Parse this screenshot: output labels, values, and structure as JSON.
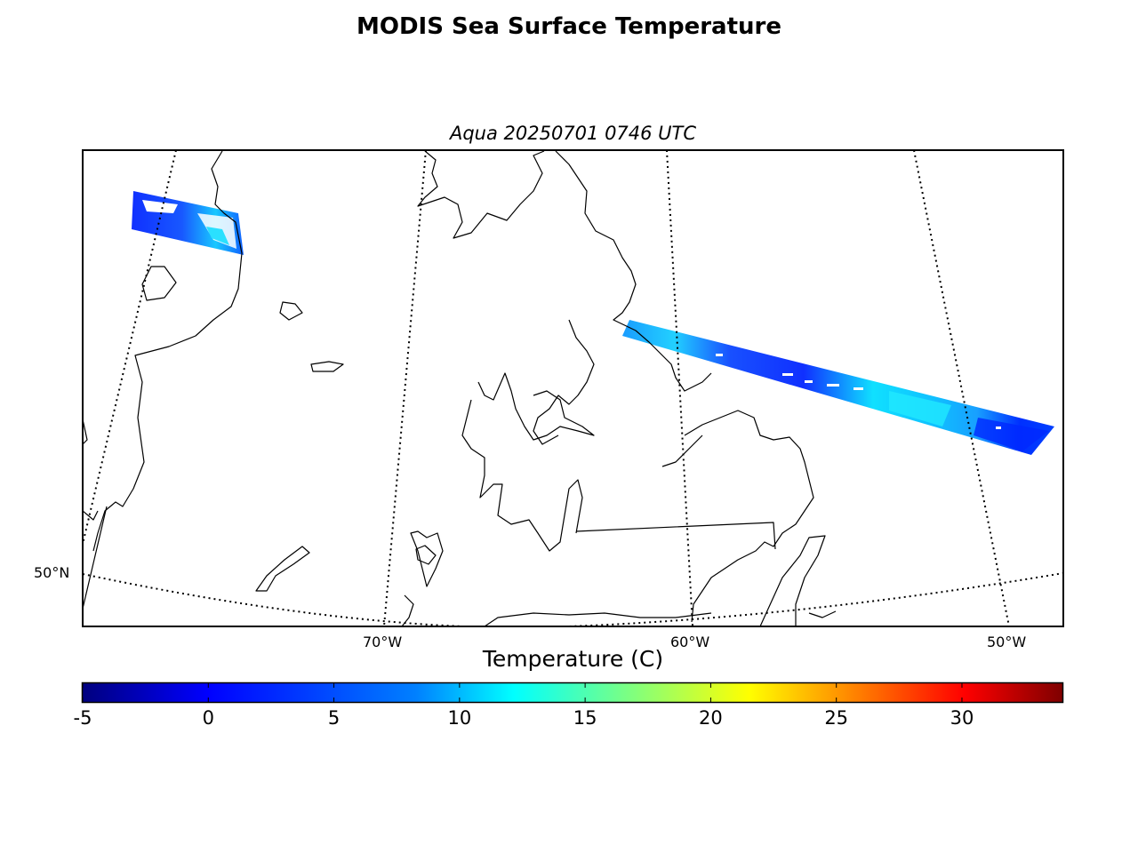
{
  "title": "MODIS Sea Surface Temperature",
  "subtitle": "Aqua 20250701 0746 UTC",
  "graticule": {
    "lat_labels": [
      {
        "text": "50°N",
        "lat": 50
      }
    ],
    "lon_labels": [
      {
        "text": "70°W",
        "lon": -70
      },
      {
        "text": "60°W",
        "lon": -60
      },
      {
        "text": "50°W",
        "lon": -50
      }
    ]
  },
  "colorbar": {
    "label": "Temperature (C)",
    "colormap": "jet",
    "range": [
      -5,
      34
    ],
    "ticks": [
      -5,
      0,
      5,
      10,
      15,
      20,
      25,
      30
    ],
    "tick_labels": [
      "-5",
      "0",
      "5",
      "10",
      "15",
      "20",
      "25",
      "30"
    ],
    "stops": [
      "#00007f",
      "#0000ff",
      "#007fff",
      "#00ffff",
      "#7fff7f",
      "#ffff00",
      "#ff7f00",
      "#ff0000",
      "#7f0000"
    ]
  },
  "swaths": [
    {
      "name": "west-swath",
      "dominant_color": "#0044ff"
    },
    {
      "name": "east-swath",
      "dominant_color": "#0066ff"
    }
  ]
}
